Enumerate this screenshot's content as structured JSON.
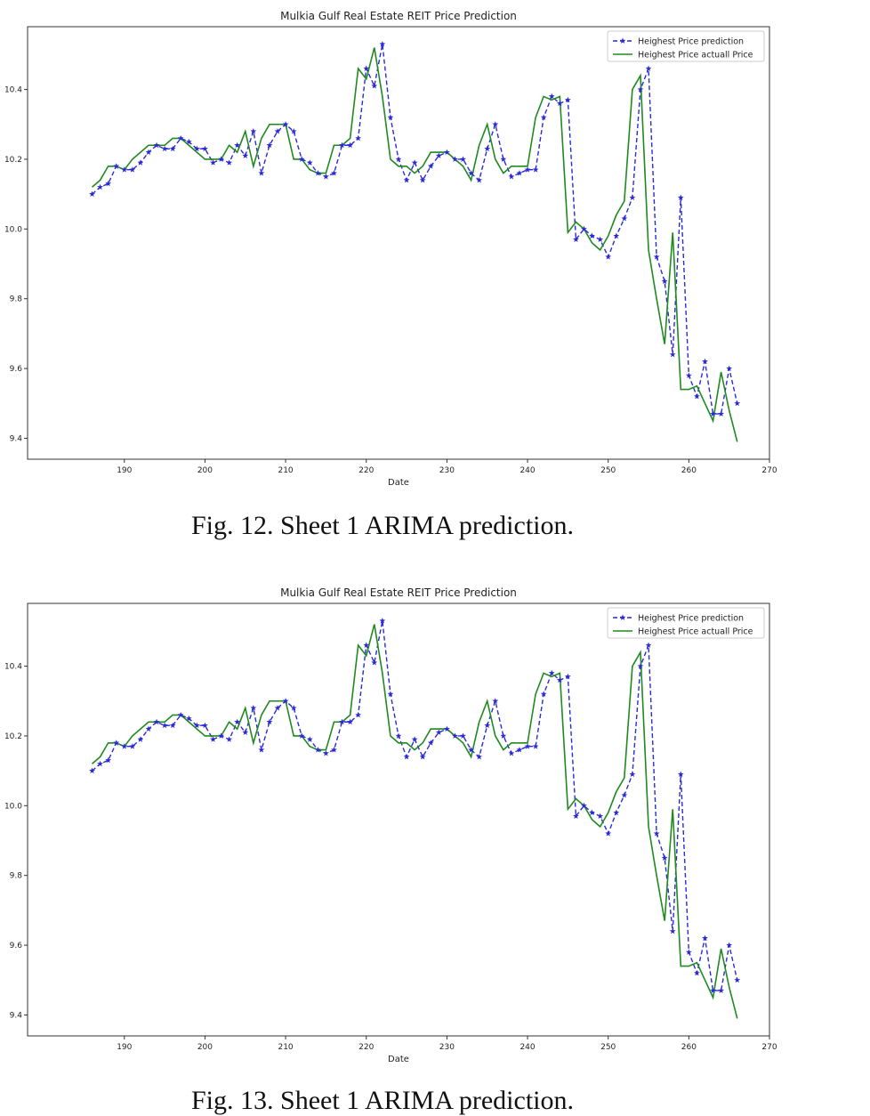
{
  "captions": [
    "Fig. 12.  Sheet 1 ARIMA prediction.",
    "Fig. 13.  Sheet 1 ARIMA prediction."
  ],
  "colors": {
    "prediction": "#2a2ad8",
    "actual": "#1f8a1f",
    "axis": "#333333"
  },
  "chart_data": [
    {
      "type": "line",
      "title": "Mulkia Gulf Real Estate REIT Price Prediction",
      "xlabel": "Date",
      "ylabel": "",
      "xlim": [
        178,
        270
      ],
      "ylim": [
        9.34,
        10.58
      ],
      "xticks": [
        190,
        200,
        210,
        220,
        230,
        240,
        250,
        260,
        270
      ],
      "yticks": [
        9.4,
        9.6,
        9.8,
        10.0,
        10.2,
        10.4
      ],
      "grid": false,
      "legend": "top-right",
      "x": [
        186,
        187,
        188,
        189,
        190,
        191,
        192,
        193,
        194,
        195,
        196,
        197,
        198,
        199,
        200,
        201,
        202,
        203,
        204,
        205,
        206,
        207,
        208,
        209,
        210,
        211,
        212,
        213,
        214,
        215,
        216,
        217,
        218,
        219,
        220,
        221,
        222,
        223,
        224,
        225,
        226,
        227,
        228,
        229,
        230,
        231,
        232,
        233,
        234,
        235,
        236,
        237,
        238,
        239,
        240,
        241,
        242,
        243,
        244,
        245,
        246,
        247,
        248,
        249,
        250,
        251,
        252,
        253,
        254,
        255,
        256,
        257,
        258,
        259,
        260,
        261,
        262,
        263,
        264,
        265,
        266
      ],
      "series": [
        {
          "name": "Heighest Price prediction",
          "style": "dashed-star",
          "color": "#2a2ad8",
          "values": [
            10.1,
            10.12,
            10.13,
            10.18,
            10.17,
            10.17,
            10.19,
            10.22,
            10.24,
            10.23,
            10.23,
            10.26,
            10.25,
            10.23,
            10.23,
            10.19,
            10.2,
            10.19,
            10.24,
            10.21,
            10.28,
            10.16,
            10.24,
            10.28,
            10.3,
            10.28,
            10.2,
            10.19,
            10.16,
            10.15,
            10.16,
            10.24,
            10.24,
            10.26,
            10.46,
            10.41,
            10.53,
            10.32,
            10.2,
            10.14,
            10.19,
            10.14,
            10.18,
            10.21,
            10.22,
            10.2,
            10.2,
            10.16,
            10.14,
            10.23,
            10.3,
            10.2,
            10.15,
            10.16,
            10.17,
            10.17,
            10.32,
            10.38,
            10.36,
            10.37,
            9.97,
            10.0,
            9.98,
            9.97,
            9.92,
            9.98,
            10.03,
            10.09,
            10.4,
            10.46,
            9.92,
            9.85,
            9.64,
            10.09,
            9.58,
            9.52,
            9.62,
            9.47,
            9.47,
            9.6,
            9.5
          ]
        },
        {
          "name": "Heighest Price actuall Price",
          "style": "solid",
          "color": "#1f8a1f",
          "values": [
            10.12,
            10.14,
            10.18,
            10.18,
            10.17,
            10.2,
            10.22,
            10.24,
            10.24,
            10.24,
            10.26,
            10.26,
            10.24,
            10.22,
            10.2,
            10.2,
            10.2,
            10.24,
            10.22,
            10.28,
            10.18,
            10.26,
            10.3,
            10.3,
            10.3,
            10.2,
            10.2,
            10.17,
            10.16,
            10.16,
            10.24,
            10.24,
            10.26,
            10.46,
            10.43,
            10.52,
            10.38,
            10.2,
            10.18,
            10.18,
            10.16,
            10.18,
            10.22,
            10.22,
            10.22,
            10.2,
            10.18,
            10.14,
            10.24,
            10.3,
            10.2,
            10.16,
            10.18,
            10.18,
            10.18,
            10.32,
            10.38,
            10.37,
            10.38,
            9.99,
            10.02,
            10.0,
            9.96,
            9.94,
            9.98,
            10.04,
            10.08,
            10.4,
            10.44,
            9.94,
            9.8,
            9.67,
            9.99,
            9.54,
            9.54,
            9.55,
            9.5,
            9.45,
            9.59,
            9.48,
            9.39
          ]
        }
      ]
    },
    {
      "type": "line",
      "title": "Mulkia Gulf Real Estate REIT Price Prediction",
      "xlabel": "Date",
      "ylabel": "",
      "xlim": [
        178,
        270
      ],
      "ylim": [
        9.34,
        10.58
      ],
      "xticks": [
        190,
        200,
        210,
        220,
        230,
        240,
        250,
        260,
        270
      ],
      "yticks": [
        9.4,
        9.6,
        9.8,
        10.0,
        10.2,
        10.4
      ],
      "grid": false,
      "legend": "top-right",
      "x": [
        186,
        187,
        188,
        189,
        190,
        191,
        192,
        193,
        194,
        195,
        196,
        197,
        198,
        199,
        200,
        201,
        202,
        203,
        204,
        205,
        206,
        207,
        208,
        209,
        210,
        211,
        212,
        213,
        214,
        215,
        216,
        217,
        218,
        219,
        220,
        221,
        222,
        223,
        224,
        225,
        226,
        227,
        228,
        229,
        230,
        231,
        232,
        233,
        234,
        235,
        236,
        237,
        238,
        239,
        240,
        241,
        242,
        243,
        244,
        245,
        246,
        247,
        248,
        249,
        250,
        251,
        252,
        253,
        254,
        255,
        256,
        257,
        258,
        259,
        260,
        261,
        262,
        263,
        264,
        265,
        266
      ],
      "series": [
        {
          "name": "Heighest Price prediction",
          "style": "dashed-star",
          "color": "#2a2ad8",
          "values": [
            10.1,
            10.12,
            10.13,
            10.18,
            10.17,
            10.17,
            10.19,
            10.22,
            10.24,
            10.23,
            10.23,
            10.26,
            10.25,
            10.23,
            10.23,
            10.19,
            10.2,
            10.19,
            10.24,
            10.21,
            10.28,
            10.16,
            10.24,
            10.28,
            10.3,
            10.28,
            10.2,
            10.19,
            10.16,
            10.15,
            10.16,
            10.24,
            10.24,
            10.26,
            10.46,
            10.41,
            10.53,
            10.32,
            10.2,
            10.14,
            10.19,
            10.14,
            10.18,
            10.21,
            10.22,
            10.2,
            10.2,
            10.16,
            10.14,
            10.23,
            10.3,
            10.2,
            10.15,
            10.16,
            10.17,
            10.17,
            10.32,
            10.38,
            10.36,
            10.37,
            9.97,
            10.0,
            9.98,
            9.97,
            9.92,
            9.98,
            10.03,
            10.09,
            10.4,
            10.46,
            9.92,
            9.85,
            9.64,
            10.09,
            9.58,
            9.52,
            9.62,
            9.47,
            9.47,
            9.6,
            9.5
          ]
        },
        {
          "name": "Heighest Price actuall Price",
          "style": "solid",
          "color": "#1f8a1f",
          "values": [
            10.12,
            10.14,
            10.18,
            10.18,
            10.17,
            10.2,
            10.22,
            10.24,
            10.24,
            10.24,
            10.26,
            10.26,
            10.24,
            10.22,
            10.2,
            10.2,
            10.2,
            10.24,
            10.22,
            10.28,
            10.18,
            10.26,
            10.3,
            10.3,
            10.3,
            10.2,
            10.2,
            10.17,
            10.16,
            10.16,
            10.24,
            10.24,
            10.26,
            10.46,
            10.43,
            10.52,
            10.38,
            10.2,
            10.18,
            10.18,
            10.16,
            10.18,
            10.22,
            10.22,
            10.22,
            10.2,
            10.18,
            10.14,
            10.24,
            10.3,
            10.2,
            10.16,
            10.18,
            10.18,
            10.18,
            10.32,
            10.38,
            10.37,
            10.38,
            9.99,
            10.02,
            10.0,
            9.96,
            9.94,
            9.98,
            10.04,
            10.08,
            10.4,
            10.44,
            9.94,
            9.8,
            9.67,
            9.99,
            9.54,
            9.54,
            9.55,
            9.5,
            9.45,
            9.59,
            9.48,
            9.39
          ]
        }
      ]
    }
  ]
}
